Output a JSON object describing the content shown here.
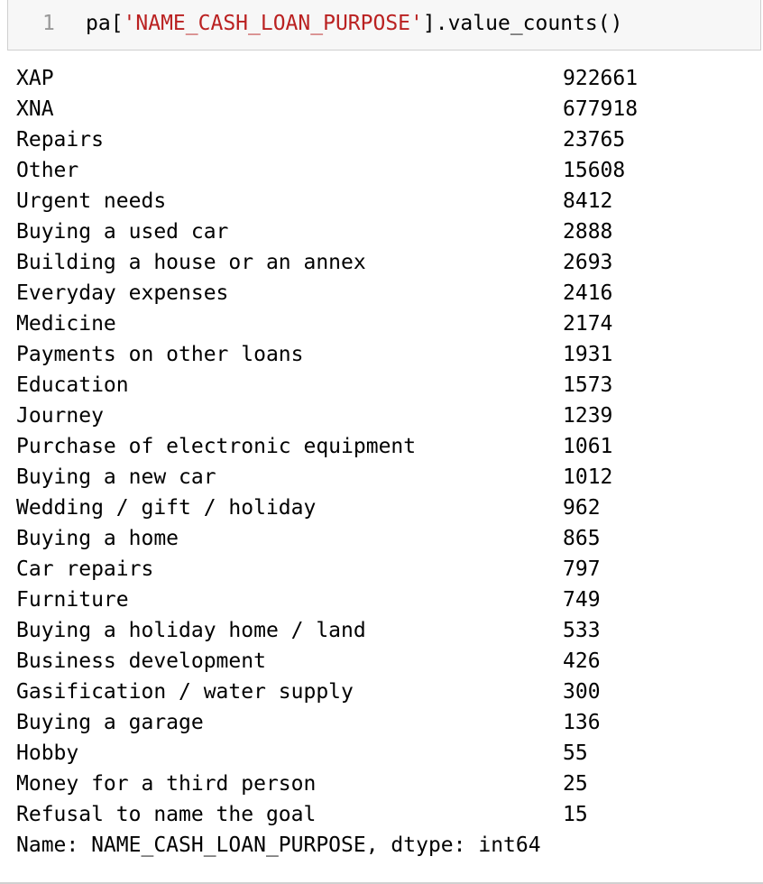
{
  "input_cell": {
    "line_number": "1",
    "code_prefix": "pa[",
    "code_string": "'NAME_CASH_LOAN_PURPOSE'",
    "code_suffix": "].value_counts()"
  },
  "output": {
    "rows": [
      {
        "label": "XAP",
        "value": "922661"
      },
      {
        "label": "XNA",
        "value": "677918"
      },
      {
        "label": "Repairs",
        "value": "23765"
      },
      {
        "label": "Other",
        "value": "15608"
      },
      {
        "label": "Urgent needs",
        "value": "8412"
      },
      {
        "label": "Buying a used car",
        "value": "2888"
      },
      {
        "label": "Building a house or an annex",
        "value": "2693"
      },
      {
        "label": "Everyday expenses",
        "value": "2416"
      },
      {
        "label": "Medicine",
        "value": "2174"
      },
      {
        "label": "Payments on other loans",
        "value": "1931"
      },
      {
        "label": "Education",
        "value": "1573"
      },
      {
        "label": "Journey",
        "value": "1239"
      },
      {
        "label": "Purchase of electronic equipment",
        "value": "1061"
      },
      {
        "label": "Buying a new car",
        "value": "1012"
      },
      {
        "label": "Wedding / gift / holiday",
        "value": "962"
      },
      {
        "label": "Buying a home",
        "value": "865"
      },
      {
        "label": "Car repairs",
        "value": "797"
      },
      {
        "label": "Furniture",
        "value": "749"
      },
      {
        "label": "Buying a holiday home / land",
        "value": "533"
      },
      {
        "label": "Business development",
        "value": "426"
      },
      {
        "label": "Gasification / water supply",
        "value": "300"
      },
      {
        "label": "Buying a garage",
        "value": "136"
      },
      {
        "label": "Hobby",
        "value": "55"
      },
      {
        "label": "Money for a third person",
        "value": "25"
      },
      {
        "label": "Refusal to name the goal",
        "value": "15"
      }
    ],
    "footer": "Name: NAME_CASH_LOAN_PURPOSE, dtype: int64"
  },
  "colors": {
    "string_literal": "#ba2121",
    "line_number": "#999999",
    "input_background": "#f7f7f7"
  }
}
